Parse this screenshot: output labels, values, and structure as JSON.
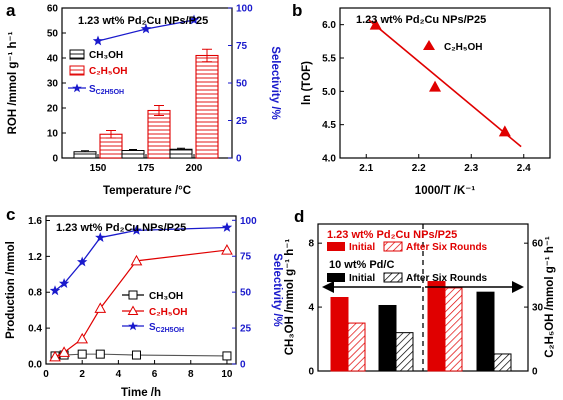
{
  "figure": {
    "panels": [
      "a",
      "b",
      "c",
      "d"
    ]
  },
  "colors": {
    "red": "#e00000",
    "blue": "#1a1acc",
    "black": "#000000",
    "gray": "#555555"
  },
  "chart_data": [
    {
      "id": "a",
      "type": "bar",
      "panel_label": "a",
      "title": "1.23 wt% Pd₂Cu NPs/P25",
      "xlabel": "Temperature /°C",
      "ylabel": "ROH /mmol g⁻¹ h⁻¹",
      "y2label": "Selectivity /%",
      "categories": [
        "150",
        "175",
        "200"
      ],
      "ylim": [
        0,
        60
      ],
      "y2lim": [
        0,
        100
      ],
      "yticks": [
        "0",
        "10",
        "20",
        "30",
        "40",
        "50",
        "60"
      ],
      "y2ticks": [
        "0",
        "25",
        "50",
        "75",
        "100"
      ],
      "series": [
        {
          "name": "CH₃OH",
          "kind": "bar",
          "values": [
            2.5,
            3.0,
            3.5
          ],
          "errors": [
            0.4,
            0.4,
            0.4
          ]
        },
        {
          "name": "C₂H₅OH",
          "kind": "bar",
          "values": [
            9.5,
            19.0,
            41.0
          ],
          "errors": [
            1.5,
            2.0,
            2.5
          ]
        },
        {
          "name": "Sᶜ₂ᴴ₅ᴼᴴ",
          "label": "SC2H5OH",
          "kind": "line",
          "axis": "y2",
          "values": [
            78,
            86,
            92
          ]
        }
      ]
    },
    {
      "id": "b",
      "type": "scatter",
      "panel_label": "b",
      "title": "1.23 wt% Pd₂Cu NPs/P25",
      "xlabel": "1000/T /K⁻¹",
      "ylabel": "ln (TOF)",
      "xlim": [
        2.05,
        2.45
      ],
      "ylim": [
        4.0,
        6.25
      ],
      "xticks": [
        "2.1",
        "2.2",
        "2.3",
        "2.4"
      ],
      "yticks": [
        "4.0",
        "4.5",
        "5.0",
        "5.5",
        "6.0"
      ],
      "series": [
        {
          "name": "C₂H₅OH",
          "x": [
            2.118,
            2.231,
            2.364
          ],
          "y": [
            6.0,
            5.07,
            4.4
          ]
        }
      ],
      "fit": {
        "x": [
          2.105,
          2.395
        ],
        "y": [
          6.07,
          4.17
        ]
      }
    },
    {
      "id": "c",
      "type": "line",
      "panel_label": "c",
      "title": "1.23 wt% Pd₂Cu NPs/P25",
      "xlabel": "Time /h",
      "ylabel": "Production /mmol",
      "y2label": "Selectivity /%",
      "xlim": [
        0,
        10.5
      ],
      "ylim": [
        0,
        1.65
      ],
      "y2lim": [
        0,
        103
      ],
      "xticks": [
        "0",
        "2",
        "4",
        "6",
        "8",
        "10"
      ],
      "yticks": [
        "0.0",
        "0.4",
        "0.8",
        "1.2",
        "1.6"
      ],
      "y2ticks": [
        "0",
        "25",
        "50",
        "75",
        "100"
      ],
      "series": [
        {
          "name": "CH₃OH",
          "x": [
            0.5,
            1,
            2,
            3,
            5,
            10
          ],
          "y": [
            0.09,
            0.1,
            0.11,
            0.11,
            0.1,
            0.09
          ]
        },
        {
          "name": "C₂H₅OH",
          "x": [
            0.5,
            1,
            2,
            3,
            5,
            10
          ],
          "y": [
            0.08,
            0.13,
            0.28,
            0.62,
            1.15,
            1.27
          ]
        },
        {
          "name": "SC2H5OH",
          "axis": "y2",
          "x": [
            0.5,
            1,
            2,
            3,
            5,
            10
          ],
          "y": [
            51,
            56,
            71,
            88,
            93,
            95
          ]
        }
      ]
    },
    {
      "id": "d",
      "type": "bar",
      "panel_label": "d",
      "title": "1.23 wt% Pd₂Cu NPs/P25",
      "subtitle": "10 wt% Pd/C",
      "ylabel": "CH₃OH /mmol g⁻¹ h⁻¹",
      "y2label": "C₂H₅OH /mmol g⁻¹ h⁻¹",
      "ylim": [
        0,
        9.2
      ],
      "y2lim": [
        0,
        69
      ],
      "yticks": [
        "0",
        "4",
        "8"
      ],
      "y2ticks": [
        "0",
        "30",
        "60"
      ],
      "legend": {
        "initial": "Initial",
        "after": "After Six Rounds"
      },
      "groups": [
        {
          "name": "CH₃OH",
          "axis": "y",
          "bars": [
            {
              "catalyst": "1.23 wt% Pd₂Cu NPs/P25",
              "state": "Initial",
              "value": 4.6
            },
            {
              "catalyst": "1.23 wt% Pd₂Cu NPs/P25",
              "state": "After Six Rounds",
              "value": 3.0
            },
            {
              "catalyst": "10 wt% Pd/C",
              "state": "Initial",
              "value": 4.1
            },
            {
              "catalyst": "10 wt% Pd/C",
              "state": "After Six Rounds",
              "value": 2.4
            }
          ]
        },
        {
          "name": "C₂H₅OH",
          "axis": "y2",
          "bars": [
            {
              "catalyst": "1.23 wt% Pd₂Cu NPs/P25",
              "state": "Initial",
              "value": 42
            },
            {
              "catalyst": "1.23 wt% Pd₂Cu NPs/P25",
              "state": "After Six Rounds",
              "value": 39
            },
            {
              "catalyst": "10 wt% Pd/C",
              "state": "Initial",
              "value": 37
            },
            {
              "catalyst": "10 wt% Pd/C",
              "state": "After Six Rounds",
              "value": 8
            }
          ]
        }
      ]
    }
  ]
}
